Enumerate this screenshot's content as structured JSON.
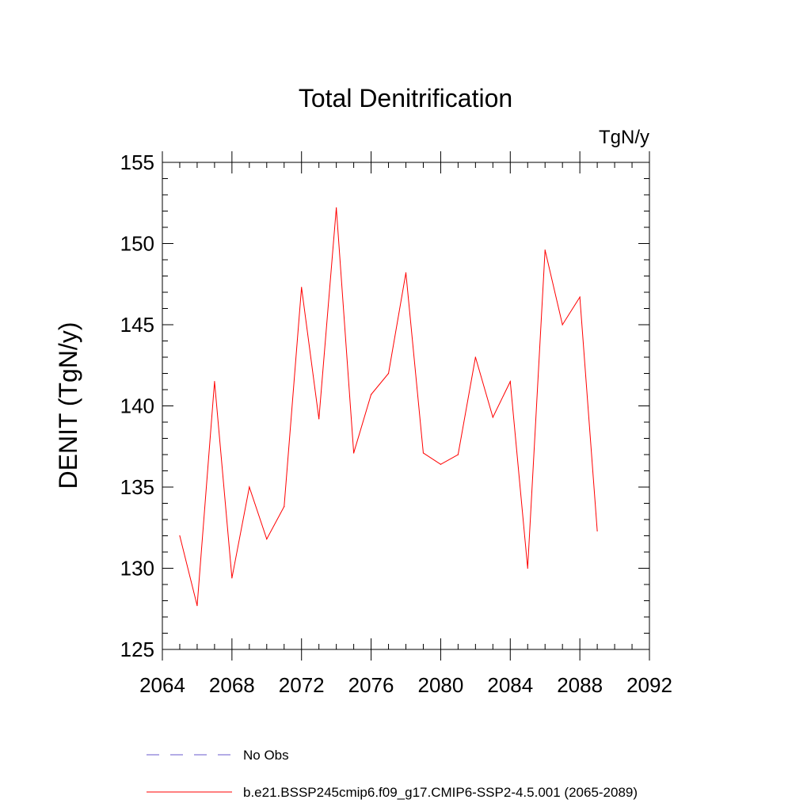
{
  "chart_data": {
    "type": "line",
    "title": "Total Denitrification",
    "units_label": "TgN/y",
    "ylabel": "DENIT  (TgN/y)",
    "xlabel": "",
    "xlim": [
      2064,
      2092
    ],
    "ylim": [
      125,
      155
    ],
    "x_ticks": [
      2064,
      2068,
      2072,
      2076,
      2080,
      2084,
      2088,
      2092
    ],
    "y_ticks": [
      125,
      130,
      135,
      140,
      145,
      150,
      155
    ],
    "x_minor_step": 1,
    "y_minor_step": 1,
    "grid": false,
    "series": [
      {
        "name": "b.e21.BSSP245cmip6.f09_g17.CMIP6-SSP2-4.5.001 (2065-2089)",
        "color": "#ff0000",
        "dash": "solid",
        "x": [
          2065,
          2066,
          2067,
          2068,
          2069,
          2070,
          2071,
          2072,
          2073,
          2074,
          2075,
          2076,
          2077,
          2078,
          2079,
          2080,
          2081,
          2082,
          2083,
          2084,
          2085,
          2086,
          2087,
          2088,
          2089
        ],
        "values": [
          132.0,
          127.7,
          141.5,
          129.4,
          135.0,
          131.8,
          133.8,
          147.3,
          139.2,
          152.2,
          137.1,
          140.7,
          142.0,
          148.2,
          137.1,
          136.4,
          137.0,
          143.0,
          139.3,
          141.5,
          130.0,
          149.6,
          145.0,
          146.7,
          132.3
        ]
      }
    ],
    "legend": {
      "placement": "bottom",
      "entries": [
        {
          "label": "No Obs",
          "color": "#6a5acd",
          "dash": "dashed"
        },
        {
          "label": "b.e21.BSSP245cmip6.f09_g17.CMIP6-SSP2-4.5.001 (2065-2089)",
          "color": "#ff0000",
          "dash": "solid"
        }
      ]
    }
  }
}
